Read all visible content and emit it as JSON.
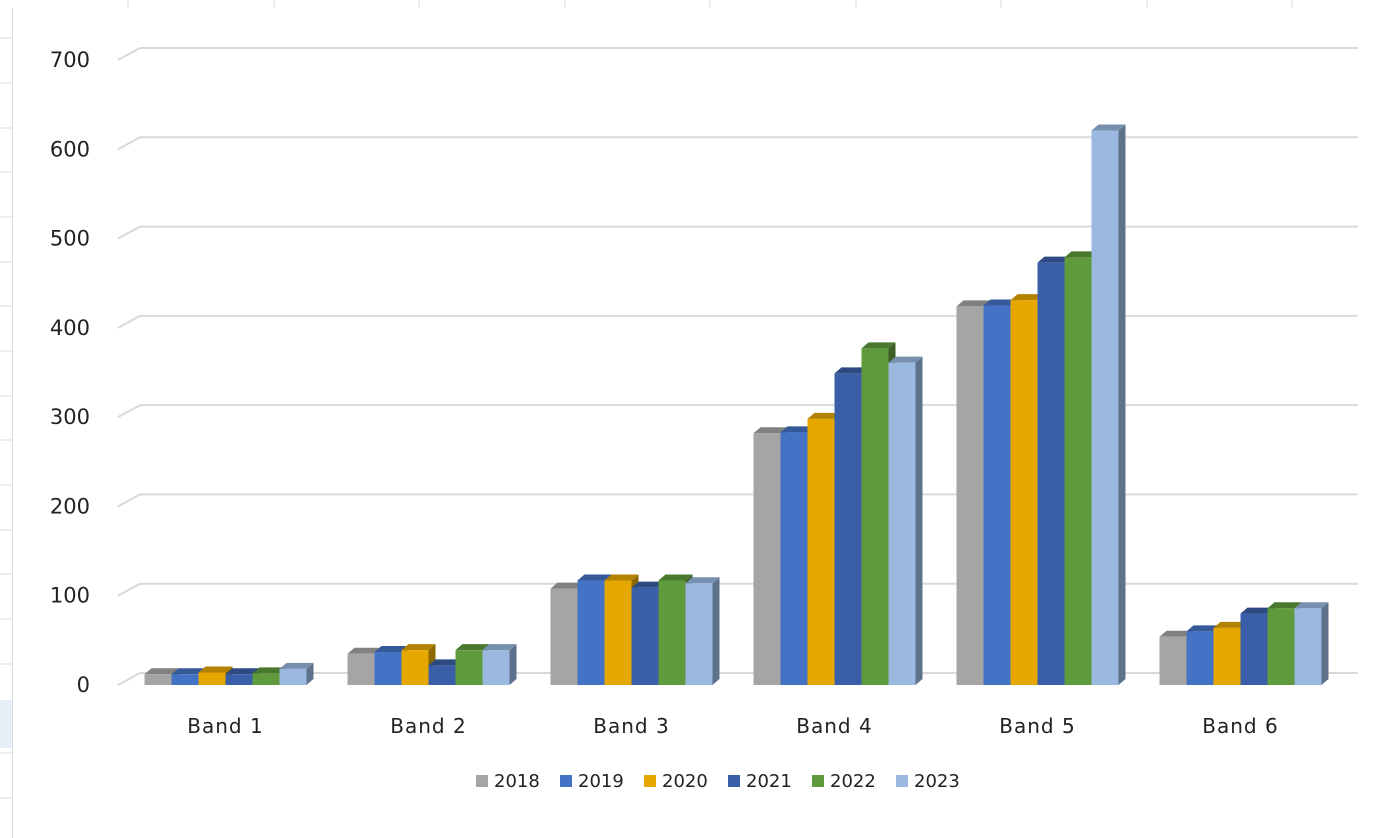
{
  "chart_data": {
    "type": "bar",
    "style": "3d-clustered-column",
    "categories": [
      "Band 1",
      "Band 2",
      "Band 3",
      "Band 4",
      "Band 5",
      "Band 6"
    ],
    "ylim": [
      0,
      700
    ],
    "yticks": [
      "0",
      "100",
      "200",
      "300",
      "400",
      "500",
      "600",
      "700"
    ],
    "grid": true,
    "legend_position": "bottom",
    "series": [
      {
        "name": "2018",
        "color": "#a5a5a5",
        "values": [
          12,
          35,
          108,
          282,
          424,
          54
        ]
      },
      {
        "name": "2019",
        "color": "#4472c4",
        "values": [
          12,
          37,
          117,
          283,
          425,
          60
        ]
      },
      {
        "name": "2020",
        "color": "#e5a700",
        "values": [
          14,
          39,
          117,
          298,
          431,
          64
        ]
      },
      {
        "name": "2021",
        "color": "#3a5fa8",
        "values": [
          12,
          22,
          109,
          349,
          473,
          80
        ]
      },
      {
        "name": "2022",
        "color": "#5f9a3c",
        "values": [
          13,
          39,
          117,
          377,
          479,
          86
        ]
      },
      {
        "name": "2023",
        "color": "#9ab8e0",
        "values": [
          18,
          39,
          114,
          361,
          621,
          86
        ]
      }
    ]
  }
}
